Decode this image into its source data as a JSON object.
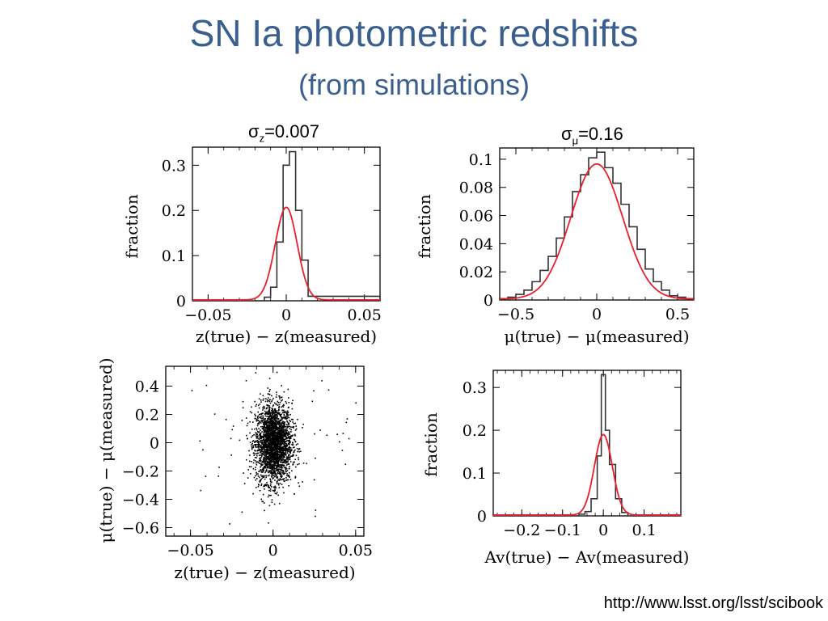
{
  "slide": {
    "title": "SN Ia photometric redshifts",
    "subtitle": "(from simulations)",
    "sigma_z": {
      "symbol": "σ",
      "sub": "z",
      "value": "=0.007"
    },
    "sigma_mu": {
      "symbol": "σ",
      "sub": "μ",
      "value": "=0.16"
    },
    "source": "http://www.lsst.org/lsst/scibook"
  },
  "chart_data": [
    {
      "id": "z",
      "type": "histogram",
      "xlabel": "z(true) − z(measured)",
      "ylabel": "fraction",
      "xlim": [
        -0.06,
        0.06
      ],
      "ylim": [
        0,
        0.34
      ],
      "xticks": [
        {
          "v": -0.05,
          "label": "−0.05"
        },
        {
          "v": 0,
          "label": "0"
        },
        {
          "v": 0.05,
          "label": "0.05"
        }
      ],
      "yticks": [
        {
          "v": 0,
          "label": "0"
        },
        {
          "v": 0.1,
          "label": "0.1"
        },
        {
          "v": 0.2,
          "label": "0.2"
        },
        {
          "v": 0.3,
          "label": "0.3"
        }
      ],
      "bins": {
        "edges": [
          -0.06,
          -0.014,
          -0.01,
          -0.006,
          -0.002,
          0.002,
          0.006,
          0.01,
          0.014,
          0.06
        ],
        "values": [
          0,
          0.008,
          0.03,
          0.13,
          0.3,
          0.33,
          0.2,
          0.09,
          0.01
        ]
      },
      "fit": {
        "mu": 0.0,
        "sigma": 0.007,
        "amp": 0.205
      }
    },
    {
      "id": "mu",
      "type": "histogram",
      "xlabel": "μ(true) − μ(measured)",
      "ylabel": "fraction",
      "xlim": [
        -0.6,
        0.6
      ],
      "ylim": [
        0,
        0.108
      ],
      "xticks": [
        {
          "v": -0.5,
          "label": "−0.5"
        },
        {
          "v": 0,
          "label": "0"
        },
        {
          "v": 0.5,
          "label": "0.5"
        }
      ],
      "yticks": [
        {
          "v": 0,
          "label": "0"
        },
        {
          "v": 0.02,
          "label": "0.02"
        },
        {
          "v": 0.04,
          "label": "0.04"
        },
        {
          "v": 0.06,
          "label": "0.06"
        },
        {
          "v": 0.08,
          "label": "0.08"
        },
        {
          "v": 0.1,
          "label": "0.1"
        }
      ],
      "bins": {
        "edges": [
          -0.6,
          -0.55,
          -0.5,
          -0.45,
          -0.4,
          -0.35,
          -0.3,
          -0.25,
          -0.2,
          -0.15,
          -0.1,
          -0.05,
          0,
          0.05,
          0.1,
          0.15,
          0.2,
          0.25,
          0.3,
          0.35,
          0.4,
          0.45,
          0.5,
          0.55,
          0.6
        ],
        "values": [
          0.001,
          0.002,
          0.004,
          0.007,
          0.013,
          0.021,
          0.031,
          0.044,
          0.059,
          0.077,
          0.089,
          0.101,
          0.105,
          0.094,
          0.083,
          0.068,
          0.052,
          0.036,
          0.022,
          0.013,
          0.007,
          0.003,
          0.002,
          0.001
        ]
      },
      "fit": {
        "mu": 0.0,
        "sigma": 0.16,
        "amp": 0.096
      }
    },
    {
      "id": "scatter",
      "type": "scatter",
      "xlabel": "z(true) − z(measured)",
      "ylabel": "μ(true) − μ(measured)",
      "xlim": [
        -0.065,
        0.055
      ],
      "ylim": [
        -0.66,
        0.54
      ],
      "xticks": [
        {
          "v": -0.05,
          "label": "−0.05"
        },
        {
          "v": 0,
          "label": "0"
        },
        {
          "v": 0.05,
          "label": "0.05"
        }
      ],
      "yticks": [
        {
          "v": 0.4,
          "label": "0.4"
        },
        {
          "v": 0.2,
          "label": "0.2"
        },
        {
          "v": 0,
          "label": "0"
        },
        {
          "v": -0.2,
          "label": "−0.2"
        },
        {
          "v": -0.4,
          "label": "−0.4"
        },
        {
          "v": -0.6,
          "label": "−0.6"
        }
      ],
      "sample": {
        "count": 2600,
        "sigma_x": 0.0055,
        "sigma_y": 0.14,
        "outliers": 60
      }
    },
    {
      "id": "av",
      "type": "histogram",
      "xlabel": "Av(true) − Av(measured)",
      "ylabel": "fraction",
      "xlim": [
        -0.27,
        0.19
      ],
      "ylim": [
        0,
        0.34
      ],
      "xticks": [
        {
          "v": -0.2,
          "label": "−0.2"
        },
        {
          "v": -0.1,
          "label": "−0.1"
        },
        {
          "v": 0,
          "label": "0"
        },
        {
          "v": 0.1,
          "label": "0.1"
        }
      ],
      "yticks": [
        {
          "v": 0,
          "label": "0"
        },
        {
          "v": 0.1,
          "label": "0.1"
        },
        {
          "v": 0.2,
          "label": "0.2"
        },
        {
          "v": 0.3,
          "label": "0.3"
        }
      ],
      "bins": {
        "edges": [
          -0.27,
          -0.06,
          -0.045,
          -0.03,
          -0.015,
          -0.005,
          0.005,
          0.015,
          0.03,
          0.045,
          0.06,
          0.19
        ],
        "values": [
          0,
          0.004,
          0.01,
          0.04,
          0.14,
          0.33,
          0.2,
          0.12,
          0.04,
          0.008,
          0
        ]
      },
      "fit": {
        "mu": 0.0,
        "sigma": 0.022,
        "amp": 0.188
      }
    }
  ]
}
